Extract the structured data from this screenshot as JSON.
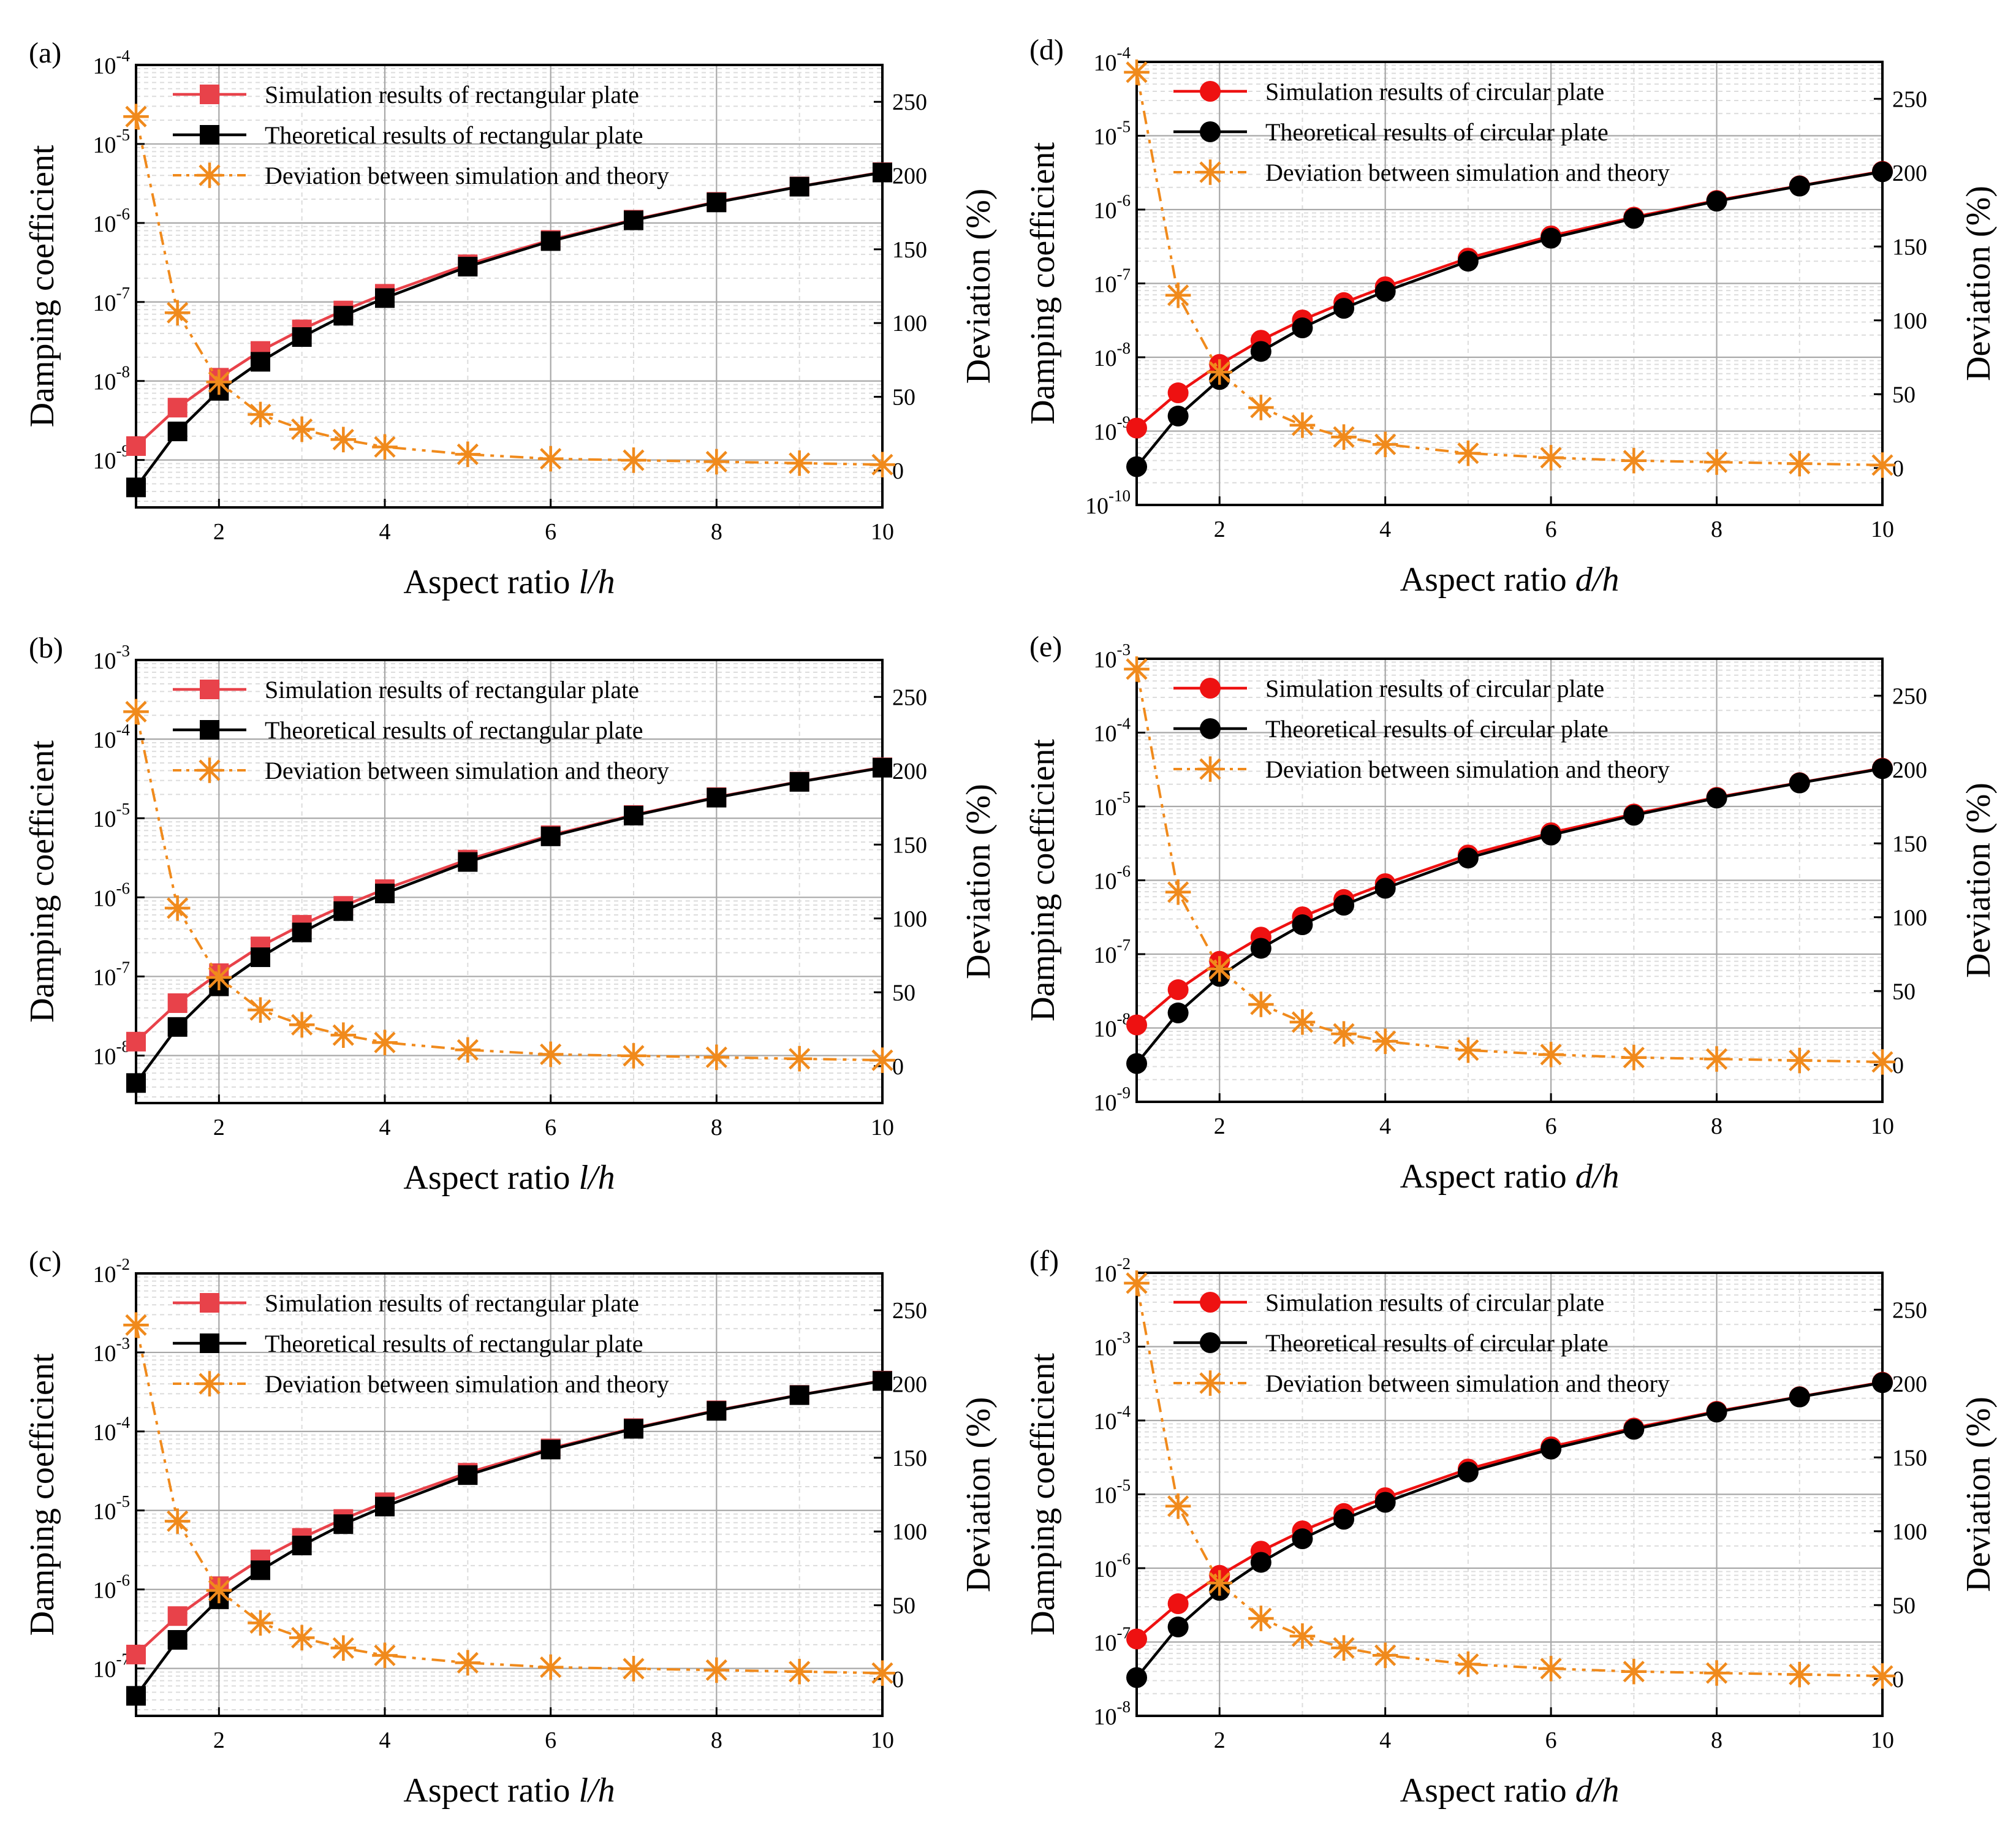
{
  "figure": {
    "legend_labels": {
      "deviation": "Deviation between simulation and theory"
    }
  },
  "chart_data": [
    {
      "panel_label": "(a)",
      "type": "line",
      "plate": "rectangular",
      "title": "",
      "xlabel_prefix": "Aspect ratio ",
      "xlabel_var": "l/h",
      "ylabel": "Damping coefficient",
      "y2label": "Deviation (%)",
      "xlim": [
        1,
        10
      ],
      "x_ticks": [
        2,
        4,
        6,
        8,
        10
      ],
      "y_log_range": [
        -9.6,
        -4
      ],
      "y_ticks": [
        -9,
        -8,
        -7,
        -6,
        -5,
        -4
      ],
      "y2lim": [
        -25,
        275
      ],
      "y2_ticks": [
        0,
        50,
        100,
        150,
        200,
        250
      ],
      "x": [
        1,
        1.5,
        2,
        2.5,
        3,
        3.5,
        4,
        5,
        6,
        7,
        8,
        9,
        10
      ],
      "series": [
        {
          "name": "Simulation results of rectangular plate",
          "axis": "left",
          "marker": "square",
          "color": "#e8424a",
          "values": [
            1.5e-09,
            4.6e-09,
            1.1e-08,
            2.4e-08,
            4.5e-08,
            7.8e-08,
            1.27e-07,
            3e-07,
            6.1e-07,
            1.1e-06,
            1.85e-06,
            2.9e-06,
            4.4e-06
          ]
        },
        {
          "name": "Theoretical results of rectangular plate",
          "axis": "left",
          "marker": "square",
          "color": "#000000",
          "values": [
            4.5e-10,
            2.3e-09,
            7.5e-09,
            1.75e-08,
            3.6e-08,
            6.7e-08,
            1.12e-07,
            2.8e-07,
            5.9e-07,
            1.08e-06,
            1.82e-06,
            2.88e-06,
            4.35e-06
          ]
        },
        {
          "name": "Deviation between simulation and theory",
          "axis": "right",
          "marker": "asterisk",
          "color": "#f08a1c",
          "values": [
            240,
            107,
            60,
            38,
            28,
            21,
            16,
            11,
            8,
            7,
            6,
            5,
            4
          ]
        }
      ]
    },
    {
      "panel_label": "(b)",
      "type": "line",
      "plate": "rectangular",
      "title": "",
      "xlabel_prefix": "Aspect ratio ",
      "xlabel_var": "l/h",
      "ylabel": "Damping coefficient",
      "y2label": "Deviation (%)",
      "xlim": [
        1,
        10
      ],
      "x_ticks": [
        2,
        4,
        6,
        8,
        10
      ],
      "y_log_range": [
        -8.6,
        -3
      ],
      "y_ticks": [
        -8,
        -7,
        -6,
        -5,
        -4,
        -3
      ],
      "y2lim": [
        -25,
        275
      ],
      "y2_ticks": [
        0,
        50,
        100,
        150,
        200,
        250
      ],
      "x": [
        1,
        1.5,
        2,
        2.5,
        3,
        3.5,
        4,
        5,
        6,
        7,
        8,
        9,
        10
      ],
      "series": [
        {
          "name": "Simulation results of rectangular plate",
          "axis": "left",
          "marker": "square",
          "color": "#e8424a",
          "values": [
            1.5e-08,
            4.6e-08,
            1.1e-07,
            2.4e-07,
            4.5e-07,
            7.8e-07,
            1.27e-06,
            3e-06,
            6.1e-06,
            1.1e-05,
            1.85e-05,
            2.9e-05,
            4.4e-05
          ]
        },
        {
          "name": "Theoretical results of rectangular plate",
          "axis": "left",
          "marker": "square",
          "color": "#000000",
          "values": [
            4.5e-09,
            2.3e-08,
            7.5e-08,
            1.75e-07,
            3.6e-07,
            6.7e-07,
            1.12e-06,
            2.8e-06,
            5.9e-06,
            1.08e-05,
            1.82e-05,
            2.88e-05,
            4.35e-05
          ]
        },
        {
          "name": "Deviation between simulation and theory",
          "axis": "right",
          "marker": "asterisk",
          "color": "#f08a1c",
          "values": [
            240,
            107,
            60,
            38,
            28,
            21,
            16,
            11,
            8,
            7,
            6,
            5,
            4
          ]
        }
      ]
    },
    {
      "panel_label": "(c)",
      "type": "line",
      "plate": "rectangular",
      "title": "",
      "xlabel_prefix": "Aspect ratio ",
      "xlabel_var": "l/h",
      "ylabel": "Damping coefficient",
      "y2label": "Deviation (%)",
      "xlim": [
        1,
        10
      ],
      "x_ticks": [
        2,
        4,
        6,
        8,
        10
      ],
      "y_log_range": [
        -7.6,
        -2
      ],
      "y_ticks": [
        -7,
        -6,
        -5,
        -4,
        -3,
        -2
      ],
      "y2lim": [
        -25,
        275
      ],
      "y2_ticks": [
        0,
        50,
        100,
        150,
        200,
        250
      ],
      "x": [
        1,
        1.5,
        2,
        2.5,
        3,
        3.5,
        4,
        5,
        6,
        7,
        8,
        9,
        10
      ],
      "series": [
        {
          "name": "Simulation results of rectangular plate",
          "axis": "left",
          "marker": "square",
          "color": "#e8424a",
          "values": [
            1.5e-07,
            4.6e-07,
            1.1e-06,
            2.4e-06,
            4.5e-06,
            7.8e-06,
            1.27e-05,
            3e-05,
            6.1e-05,
            0.00011,
            0.000185,
            0.00029,
            0.00044
          ]
        },
        {
          "name": "Theoretical results of rectangular plate",
          "axis": "left",
          "marker": "square",
          "color": "#000000",
          "values": [
            4.5e-08,
            2.3e-07,
            7.5e-07,
            1.75e-06,
            3.6e-06,
            6.7e-06,
            1.12e-05,
            2.8e-05,
            5.9e-05,
            0.000108,
            0.000182,
            0.000288,
            0.000435
          ]
        },
        {
          "name": "Deviation between simulation and theory",
          "axis": "right",
          "marker": "asterisk",
          "color": "#f08a1c",
          "values": [
            240,
            107,
            60,
            38,
            28,
            21,
            16,
            11,
            8,
            7,
            6,
            5,
            4
          ]
        }
      ]
    },
    {
      "panel_label": "(d)",
      "type": "line",
      "plate": "circular",
      "title": "",
      "xlabel_prefix": "Aspect ratio ",
      "xlabel_var": "d/h",
      "ylabel": "Damping coefficient",
      "y2label": "Deviation (%)",
      "xlim": [
        1,
        10
      ],
      "x_ticks": [
        2,
        4,
        6,
        8,
        10
      ],
      "y_log_range": [
        -10,
        -4
      ],
      "y_ticks": [
        -10,
        -9,
        -8,
        -7,
        -6,
        -5,
        -4
      ],
      "y2lim": [
        -25,
        275
      ],
      "y2_ticks": [
        0,
        50,
        100,
        150,
        200,
        250
      ],
      "x": [
        1,
        1.5,
        2,
        2.5,
        3,
        3.5,
        4,
        5,
        6,
        7,
        8,
        9,
        10
      ],
      "series": [
        {
          "name": "Simulation results of circular plate",
          "axis": "left",
          "marker": "circle",
          "color": "#ee1111",
          "values": [
            1.1e-09,
            3.3e-09,
            8e-09,
            1.7e-08,
            3.2e-08,
            5.5e-08,
            9e-08,
            2.2e-07,
            4.4e-07,
            7.9e-07,
            1.33e-06,
            2.1e-06,
            3.3e-06
          ]
        },
        {
          "name": "Theoretical results of circular plate",
          "axis": "left",
          "marker": "circle",
          "color": "#000000",
          "values": [
            3.3e-10,
            1.6e-09,
            5e-09,
            1.2e-08,
            2.5e-08,
            4.6e-08,
            7.8e-08,
            2e-07,
            4.1e-07,
            7.6e-07,
            1.3e-06,
            2.08e-06,
            3.25e-06
          ]
        },
        {
          "name": "Deviation between simulation and theory",
          "axis": "right",
          "marker": "asterisk",
          "color": "#f08a1c",
          "values": [
            268,
            117,
            65,
            41,
            29,
            21,
            16,
            10,
            7,
            5,
            4,
            3,
            2
          ]
        }
      ]
    },
    {
      "panel_label": "(e)",
      "type": "line",
      "plate": "circular",
      "title": "",
      "xlabel_prefix": "Aspect ratio ",
      "xlabel_var": "d/h",
      "ylabel": "Damping coefficient",
      "y2label": "Deviation (%)",
      "xlim": [
        1,
        10
      ],
      "x_ticks": [
        2,
        4,
        6,
        8,
        10
      ],
      "y_log_range": [
        -9,
        -3
      ],
      "y_ticks": [
        -9,
        -8,
        -7,
        -6,
        -5,
        -4,
        -3
      ],
      "y2lim": [
        -25,
        275
      ],
      "y2_ticks": [
        0,
        50,
        100,
        150,
        200,
        250
      ],
      "x": [
        1,
        1.5,
        2,
        2.5,
        3,
        3.5,
        4,
        5,
        6,
        7,
        8,
        9,
        10
      ],
      "series": [
        {
          "name": "Simulation results of circular plate",
          "axis": "left",
          "marker": "circle",
          "color": "#ee1111",
          "values": [
            1.1e-08,
            3.3e-08,
            8e-08,
            1.7e-07,
            3.2e-07,
            5.5e-07,
            9e-07,
            2.2e-06,
            4.4e-06,
            7.9e-06,
            1.33e-05,
            2.1e-05,
            3.3e-05
          ]
        },
        {
          "name": "Theoretical results of circular plate",
          "axis": "left",
          "marker": "circle",
          "color": "#000000",
          "values": [
            3.3e-09,
            1.6e-08,
            5e-08,
            1.2e-07,
            2.5e-07,
            4.6e-07,
            7.8e-07,
            2e-06,
            4.1e-06,
            7.6e-06,
            1.3e-05,
            2.08e-05,
            3.25e-05
          ]
        },
        {
          "name": "Deviation between simulation and theory",
          "axis": "right",
          "marker": "asterisk",
          "color": "#f08a1c",
          "values": [
            268,
            117,
            65,
            41,
            29,
            21,
            16,
            10,
            7,
            5,
            4,
            3,
            2
          ]
        }
      ]
    },
    {
      "panel_label": "(f)",
      "type": "line",
      "plate": "circular",
      "title": "",
      "xlabel_prefix": "Aspect ratio ",
      "xlabel_var": "d/h",
      "ylabel": "Damping coefficient",
      "y2label": "Deviation (%)",
      "xlim": [
        1,
        10
      ],
      "x_ticks": [
        2,
        4,
        6,
        8,
        10
      ],
      "y_log_range": [
        -8,
        -2
      ],
      "y_ticks": [
        -8,
        -7,
        -6,
        -5,
        -4,
        -3,
        -2
      ],
      "y2lim": [
        -25,
        275
      ],
      "y2_ticks": [
        0,
        50,
        100,
        150,
        200,
        250
      ],
      "x": [
        1,
        1.5,
        2,
        2.5,
        3,
        3.5,
        4,
        5,
        6,
        7,
        8,
        9,
        10
      ],
      "series": [
        {
          "name": "Simulation results of circular plate",
          "axis": "left",
          "marker": "circle",
          "color": "#ee1111",
          "values": [
            1.1e-07,
            3.3e-07,
            8e-07,
            1.7e-06,
            3.2e-06,
            5.5e-06,
            9e-06,
            2.2e-05,
            4.4e-05,
            7.9e-05,
            0.000133,
            0.00021,
            0.00033
          ]
        },
        {
          "name": "Theoretical results of circular plate",
          "axis": "left",
          "marker": "circle",
          "color": "#000000",
          "values": [
            3.3e-08,
            1.6e-07,
            5e-07,
            1.2e-06,
            2.5e-06,
            4.6e-06,
            7.8e-06,
            2e-05,
            4.1e-05,
            7.6e-05,
            0.00013,
            0.000208,
            0.000325
          ]
        },
        {
          "name": "Deviation between simulation and theory",
          "axis": "right",
          "marker": "asterisk",
          "color": "#f08a1c",
          "values": [
            268,
            117,
            65,
            41,
            29,
            21,
            16,
            10,
            7,
            5,
            4,
            3,
            2
          ]
        }
      ]
    }
  ]
}
